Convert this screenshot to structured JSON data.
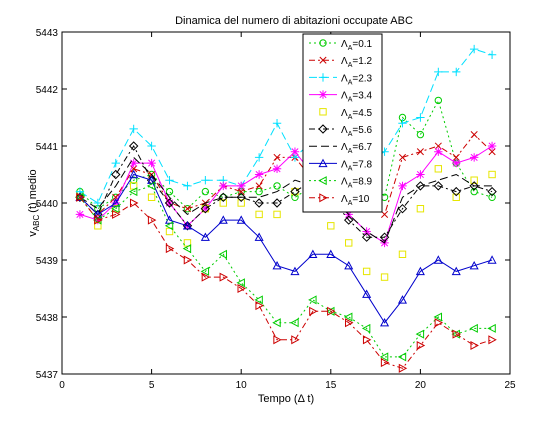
{
  "chart_data": {
    "type": "line",
    "title": "Dinamica del numero di abitazioni occupate ABC",
    "xlabel": "Tempo (Δ t)",
    "ylabel": {
      "base": "v",
      "sub": "ABC",
      "rest": "(t) medio"
    },
    "xlim": [
      0,
      25
    ],
    "ylim": [
      5437,
      5443
    ],
    "xticks": [
      0,
      5,
      10,
      15,
      20,
      25
    ],
    "yticks": [
      5437,
      5438,
      5439,
      5440,
      5441,
      5442,
      5443
    ],
    "grid": false,
    "legend_position": "top-center",
    "x": [
      1,
      2,
      3,
      4,
      5,
      6,
      7,
      8,
      9,
      10,
      11,
      12,
      13,
      14,
      15,
      16,
      17,
      18,
      19,
      20,
      21,
      22,
      23,
      24
    ],
    "series": [
      {
        "name": "ΛA=0.1",
        "label_main": "Λ",
        "label_sub": "A",
        "label_rest": "=0.1",
        "color": "#00cc00",
        "dash": "2,3",
        "marker": "circle",
        "values": [
          5440.2,
          5439.9,
          5440.1,
          5440.4,
          5440.5,
          5440.2,
          5439.9,
          5440.2,
          5440.1,
          5440.2,
          5440.2,
          5440.3,
          5440.1,
          5440.3,
          5440.6,
          5440.6,
          5440.8,
          5440.1,
          5441.5,
          5441.2,
          5441.8,
          5440.7,
          5440.2,
          5440.1
        ]
      },
      {
        "name": "ΛA=1.2",
        "label_main": "Λ",
        "label_sub": "A",
        "label_rest": "=1.2",
        "color": "#cc0000",
        "dash": "6,3,2,3",
        "marker": "x",
        "values": [
          5440.1,
          5439.8,
          5440.1,
          5440.6,
          5440.5,
          5440.0,
          5439.9,
          5440.0,
          5440.3,
          5440.2,
          5440.3,
          5440.8,
          5440.8,
          5440.4,
          5440.2,
          5440.5,
          5440.1,
          5439.8,
          5440.8,
          5440.9,
          5441.0,
          5440.8,
          5441.2,
          5440.9
        ]
      },
      {
        "name": "ΛA=2.3",
        "label_main": "Λ",
        "label_sub": "A",
        "label_rest": "=2.3",
        "color": "#00e0ff",
        "dash": "8,4",
        "marker": "plus",
        "values": [
          5440.2,
          5440.0,
          5440.7,
          5441.3,
          5441.0,
          5440.4,
          5440.3,
          5440.4,
          5440.4,
          5440.3,
          5440.8,
          5441.4,
          5440.8,
          5441.1,
          5441.0,
          5440.5,
          5440.7,
          5440.9,
          5441.4,
          5441.5,
          5442.3,
          5442.3,
          5442.7,
          5442.6
        ]
      },
      {
        "name": "ΛA=3.4",
        "label_main": "Λ",
        "label_sub": "A",
        "label_rest": "=3.4",
        "color": "#ff00ff",
        "dash": "",
        "marker": "star",
        "values": [
          5439.8,
          5439.7,
          5440.0,
          5440.7,
          5440.7,
          5440.0,
          5439.6,
          5439.9,
          5440.3,
          5440.3,
          5440.5,
          5440.6,
          5440.9,
          5440.5,
          5440.1,
          5439.8,
          5439.5,
          5439.3,
          5440.3,
          5440.5,
          5440.9,
          5440.7,
          5440.8,
          5441.0
        ]
      },
      {
        "name": "ΛA=4.5",
        "label_main": "Λ",
        "label_sub": "A",
        "label_rest": "=4.5",
        "color": "#e6e600",
        "dash": "none",
        "marker": "square",
        "values": [
          5440.1,
          5439.6,
          5439.9,
          5440.3,
          5440.1,
          5439.5,
          5439.3,
          5439.9,
          5440.0,
          5440.0,
          5439.8,
          5439.8,
          5440.2,
          5439.9,
          5439.6,
          5439.3,
          5438.8,
          5438.7,
          5439.1,
          5439.9,
          5440.6,
          5440.1,
          5440.4,
          5440.5
        ]
      },
      {
        "name": "ΛA=5.6",
        "label_main": "Λ",
        "label_sub": "A",
        "label_rest": "=5.6",
        "color": "#000000",
        "dash": "6,3,2,3",
        "marker": "diamond",
        "values": [
          5440.1,
          5439.8,
          5440.5,
          5441.0,
          5440.4,
          5440.0,
          5439.6,
          5439.9,
          5440.1,
          5440.1,
          5440.0,
          5440.0,
          5440.2,
          5440.4,
          5440.1,
          5439.7,
          5439.4,
          5439.4,
          5439.9,
          5440.3,
          5440.3,
          5440.2,
          5440.3,
          5440.2
        ]
      },
      {
        "name": "ΛA=6.7",
        "label_main": "Λ",
        "label_sub": "A",
        "label_rest": "=6.7",
        "color": "#000000",
        "dash": "8,4",
        "marker": "none",
        "values": [
          5440.1,
          5439.9,
          5440.3,
          5440.8,
          5440.5,
          5440.1,
          5439.8,
          5440.0,
          5440.1,
          5440.1,
          5440.1,
          5440.2,
          5440.4,
          5440.3,
          5440.1,
          5439.8,
          5439.5,
          5439.3,
          5440.1,
          5440.3,
          5440.4,
          5440.5,
          5440.3,
          5440.3
        ]
      },
      {
        "name": "ΛA=7.8",
        "label_main": "Λ",
        "label_sub": "A",
        "label_rest": "=7.8",
        "color": "#0000cc",
        "dash": "",
        "marker": "triangle-up",
        "values": [
          5440.1,
          5439.8,
          5440.0,
          5440.5,
          5440.4,
          5439.7,
          5439.6,
          5439.4,
          5439.7,
          5439.7,
          5439.4,
          5438.9,
          5438.8,
          5439.1,
          5439.1,
          5438.9,
          5438.4,
          5437.9,
          5438.3,
          5438.8,
          5439.0,
          5438.8,
          5438.9,
          5439.0
        ]
      },
      {
        "name": "ΛA=8.9",
        "label_main": "Λ",
        "label_sub": "A",
        "label_rest": "=8.9",
        "color": "#00cc00",
        "dash": "2,3",
        "marker": "triangle-left",
        "values": [
          5440.1,
          5439.7,
          5439.9,
          5440.2,
          5440.3,
          5439.6,
          5439.2,
          5438.8,
          5439.1,
          5438.6,
          5438.3,
          5437.9,
          5437.9,
          5438.3,
          5438.1,
          5438.0,
          5437.8,
          5437.3,
          5437.3,
          5437.7,
          5438.0,
          5437.7,
          5437.8,
          5437.8
        ]
      },
      {
        "name": "ΛA=10",
        "label_main": "Λ",
        "label_sub": "A",
        "label_rest": "=10",
        "color": "#cc0000",
        "dash": "6,3,2,3",
        "marker": "triangle-right",
        "values": [
          5440.1,
          5439.7,
          5439.8,
          5440.0,
          5439.7,
          5439.2,
          5439.0,
          5438.7,
          5438.7,
          5438.5,
          5438.2,
          5437.6,
          5437.6,
          5438.1,
          5438.1,
          5437.9,
          5437.6,
          5437.2,
          5437.1,
          5437.5,
          5437.9,
          5437.7,
          5437.5,
          5437.6
        ]
      }
    ]
  }
}
